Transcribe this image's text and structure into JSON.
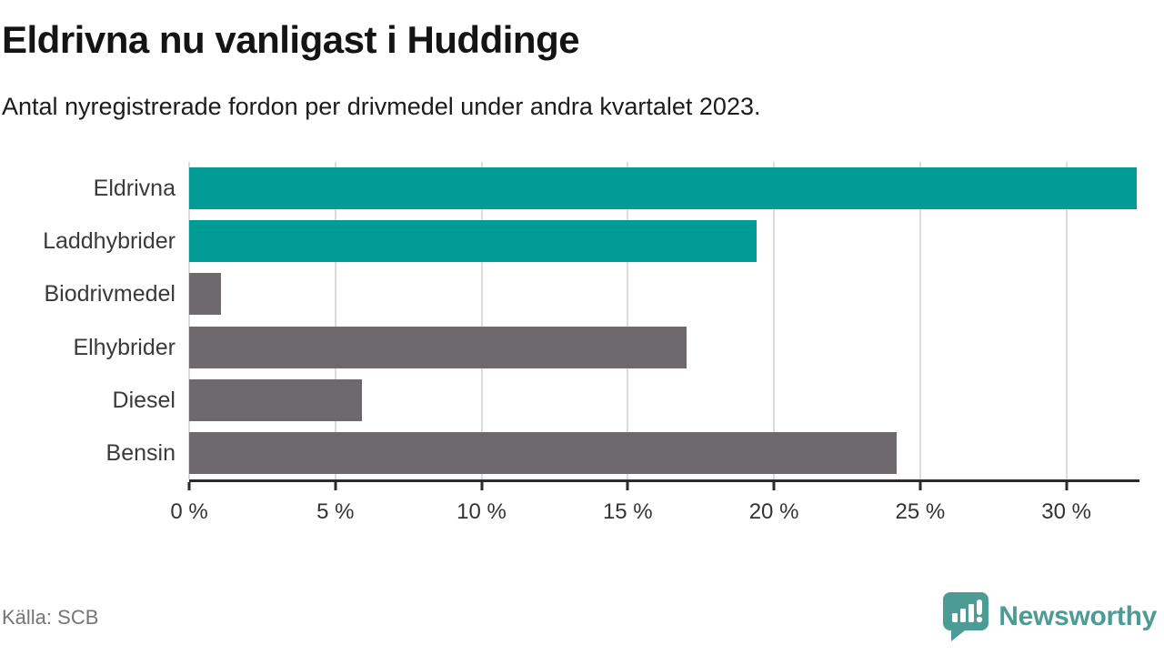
{
  "header": {
    "title": "Eldrivna nu vanligast i Huddinge",
    "subtitle": "Antal nyregistrerade fordon per drivmedel under andra kvartalet 2023."
  },
  "chart_data": {
    "type": "bar",
    "orientation": "horizontal",
    "title": "Eldrivna nu vanligast i Huddinge",
    "subtitle": "Antal nyregistrerade fordon per drivmedel under andra kvartalet 2023.",
    "categories": [
      "Eldrivna",
      "Laddhybrider",
      "Biodrivmedel",
      "Elhybrider",
      "Diesel",
      "Bensin"
    ],
    "values": [
      32.4,
      19.4,
      1.1,
      17.0,
      5.9,
      24.2
    ],
    "bar_colors": [
      "#009b94",
      "#009b94",
      "#6d696d",
      "#6d696d",
      "#6d696d",
      "#6d696d"
    ],
    "xlabel": "",
    "ylabel": "",
    "xlim": [
      0,
      32.5
    ],
    "x_ticks": [
      0,
      5,
      10,
      15,
      20,
      25,
      30
    ],
    "x_tick_labels": [
      "0 %",
      "5 %",
      "10 %",
      "15 %",
      "20 %",
      "25 %",
      "30 %"
    ],
    "grid": "vertical",
    "legend": "none"
  },
  "footer": {
    "source": "Källa: SCB",
    "brand": "Newsworthy"
  },
  "colors": {
    "accent_teal": "#009b94",
    "bar_gray": "#6d696d",
    "logo_teal": "#4d9b95",
    "gridline": "#dcdcdc",
    "axis": "#2a2a2a"
  },
  "icons": {
    "logo_icon": "newsworthy-speech-bubble-chart-icon"
  }
}
